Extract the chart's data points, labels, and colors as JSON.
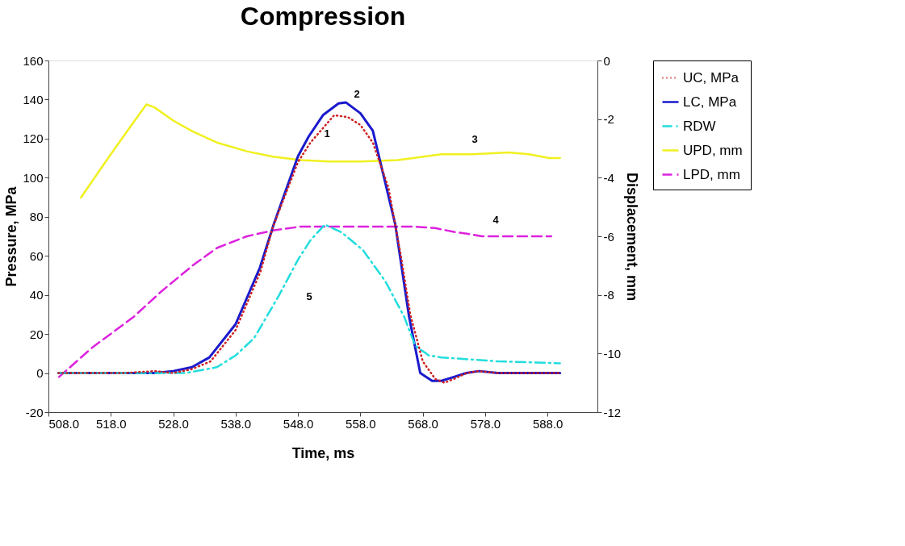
{
  "chart_data": {
    "type": "line",
    "title": "Compression",
    "xlabel": "Time, ms",
    "ylabel": "Pressure, MPa",
    "y2label": "Displacement, mm",
    "xlim": [
      508,
      596
    ],
    "xticks": [
      {
        "value": 508,
        "label": "508.0"
      },
      {
        "value": 518,
        "label": "518.0"
      },
      {
        "value": 528,
        "label": "528.0"
      },
      {
        "value": 538,
        "label": "538.0"
      },
      {
        "value": 548,
        "label": "548.0"
      },
      {
        "value": 558,
        "label": "558.0"
      },
      {
        "value": 568,
        "label": "568.0"
      },
      {
        "value": 578,
        "label": "578.0"
      },
      {
        "value": 588,
        "label": "588.0"
      }
    ],
    "ylim": [
      -20,
      160
    ],
    "yticks": [
      -20,
      0,
      20,
      40,
      60,
      80,
      100,
      120,
      140,
      160
    ],
    "y2lim": [
      -12,
      0
    ],
    "y2ticks": [
      -12,
      -10,
      -8,
      -6,
      -4,
      -2,
      0
    ],
    "grid": false,
    "legend": "right",
    "marker": "none",
    "series": [
      {
        "name": "UC, MPa",
        "color": "#cc2222",
        "line_style": "dotted",
        "x": [
          509.6,
          520,
          525,
          528,
          531,
          534,
          538,
          542,
          544,
          548,
          550,
          553.8,
          556,
          558,
          560,
          562.5,
          564.5,
          566,
          568,
          570,
          571.5,
          573,
          575,
          577,
          580,
          590
        ],
        "values": [
          0,
          0,
          1,
          0,
          2,
          6,
          22,
          52,
          75,
          108,
          118,
          132,
          131,
          127,
          118,
          95,
          60,
          30,
          6,
          -3,
          -5,
          -3,
          0,
          1,
          0,
          0
        ]
      },
      {
        "name": "LC, MPa",
        "color": "#1a1acc",
        "line_style": "solid",
        "x": [
          509.6,
          520,
          525,
          528,
          531,
          533.8,
          538,
          541.9,
          544.1,
          548,
          549.7,
          552,
          554.5,
          555.7,
          558,
          560,
          563.6,
          565.8,
          567.6,
          569.5,
          571,
          573,
          575,
          577,
          580,
          590
        ],
        "values": [
          0,
          0,
          0,
          1,
          3,
          8,
          25,
          54,
          76,
          111,
          121,
          132,
          138,
          138.5,
          133,
          124,
          76,
          29,
          0,
          -4,
          -4,
          -2,
          0,
          1,
          0,
          0
        ]
      },
      {
        "name": "RDW",
        "color": "#22dddd",
        "line_style": "dashdot",
        "x": [
          509.6,
          520,
          530,
          535,
          538,
          541,
          545,
          548,
          550,
          552.3,
          555,
          558.4,
          562,
          565,
          566.8,
          569,
          571,
          580,
          590
        ],
        "values": [
          0,
          0,
          0,
          3,
          9,
          18,
          40,
          58,
          68,
          76,
          72,
          63,
          47,
          29,
          14,
          9,
          8,
          6,
          5
        ]
      },
      {
        "name": "UPD, mm",
        "color": "#f0f020",
        "line_style": "solid",
        "axis": "y2",
        "x": [
          513.2,
          518,
          521,
          523.7,
          525,
          528,
          531.1,
          535,
          539.8,
          544,
          548.4,
          553,
          558,
          564,
          571,
          576,
          581.8,
          585,
          588.3,
          590
        ],
        "values": [
          -4.68,
          -3.2,
          -2.3,
          -1.5,
          -1.6,
          -2.05,
          -2.42,
          -2.8,
          -3.1,
          -3.28,
          -3.4,
          -3.45,
          -3.45,
          -3.4,
          -3.2,
          -3.2,
          -3.14,
          -3.2,
          -3.33,
          -3.33
        ]
      },
      {
        "name": "LPD, mm",
        "color": "#dd22dd",
        "line_style": "dashed",
        "axis": "y2",
        "x": [
          509.7,
          515,
          521.6,
          526,
          531.1,
          535,
          539.8,
          544,
          548.4,
          555,
          566.6,
          570,
          573,
          575.3,
          577.5,
          580,
          588.6
        ],
        "values": [
          -10.8,
          -9.8,
          -8.76,
          -7.9,
          -7.0,
          -6.4,
          -6.0,
          -5.8,
          -5.67,
          -5.67,
          -5.67,
          -5.72,
          -5.85,
          -5.92,
          -6.0,
          -6.0,
          -6.0
        ]
      }
    ],
    "annotations": [
      "1",
      "2",
      "3",
      "4",
      "5"
    ]
  }
}
